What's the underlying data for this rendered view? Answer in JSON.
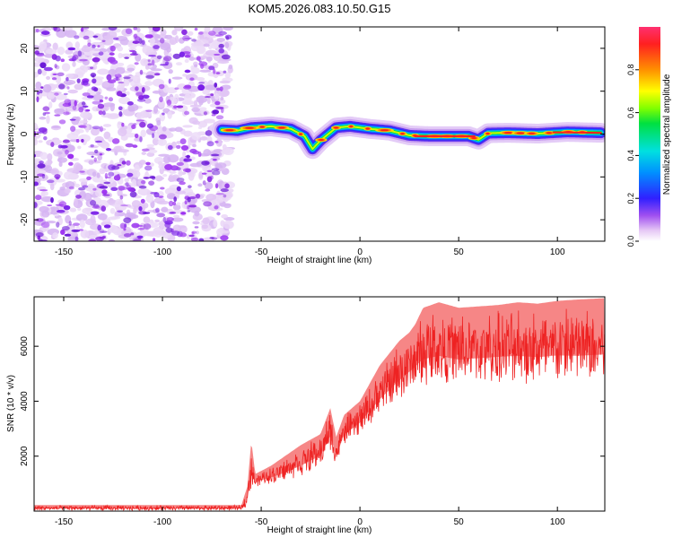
{
  "title": "KOM5.2026.083.10.50.G15",
  "colors": {
    "snr_line": "#ee2222",
    "frame": "#000000",
    "background": "#ffffff"
  },
  "chart_data": [
    {
      "type": "heatmap",
      "name": "spectrogram",
      "xlabel": "Height of straight line (km)",
      "ylabel": "Frequency (Hz)",
      "xlim": [
        -165,
        124
      ],
      "ylim": [
        -25,
        25
      ],
      "xticks": [
        -150,
        -100,
        -50,
        0,
        50,
        100
      ],
      "yticks": [
        -20,
        -10,
        0,
        10,
        20
      ],
      "noise_region_x": [
        -165,
        -68
      ],
      "signal_trace": {
        "x": [
          -70,
          -62,
          -55,
          -45,
          -35,
          -28,
          -24,
          -20,
          -12,
          -5,
          5,
          15,
          25,
          35,
          45,
          55,
          60,
          65,
          75,
          90,
          105,
          122
        ],
        "freq": [
          1,
          0.8,
          1.5,
          1.8,
          1.2,
          -0.5,
          -3.5,
          -1.5,
          1.5,
          1.8,
          1.2,
          0.8,
          -0.3,
          -0.5,
          -0.5,
          -0.5,
          -1.3,
          0.2,
          0.3,
          0.1,
          0.5,
          0.3
        ]
      },
      "colorbar": {
        "label": "Normalized spectral amplitude",
        "ticks": [
          "0.0",
          "0.2",
          "0.4",
          "0.6",
          "0.8"
        ],
        "range": [
          0,
          1
        ]
      }
    },
    {
      "type": "line",
      "name": "snr",
      "xlabel": "Height of straight line (km)",
      "ylabel": "SNR (10 * v/v)",
      "xlim": [
        -165,
        124
      ],
      "ylim": [
        0,
        7800
      ],
      "xticks": [
        -150,
        -100,
        -50,
        0,
        50,
        100
      ],
      "yticks": [
        2000,
        4000,
        6000
      ],
      "series": [
        {
          "name": "upper envelope",
          "x": [
            -165,
            -100,
            -60,
            -57,
            -55,
            -53,
            -45,
            -30,
            -20,
            -15,
            -12,
            -8,
            0,
            10,
            20,
            25,
            28,
            32,
            40,
            50,
            60,
            70,
            80,
            90,
            100,
            110,
            124
          ],
          "y": [
            220,
            220,
            220,
            900,
            2550,
            1350,
            1650,
            2400,
            2800,
            3750,
            2700,
            3500,
            4000,
            5300,
            6200,
            6500,
            6800,
            7400,
            7600,
            7400,
            7450,
            7500,
            7600,
            7550,
            7650,
            7700,
            7750
          ]
        },
        {
          "name": "lower envelope",
          "x": [
            -165,
            -100,
            -60,
            -57,
            -55,
            -50,
            -40,
            -30,
            -20,
            -15,
            -12,
            -8,
            0,
            10,
            20,
            25,
            30,
            40,
            50,
            60,
            70,
            80,
            90,
            100,
            110,
            124
          ],
          "y": [
            20,
            20,
            20,
            200,
            800,
            950,
            1050,
            1250,
            1600,
            2200,
            1600,
            2400,
            2800,
            3400,
            4000,
            4300,
            4500,
            4600,
            4500,
            4550,
            4600,
            4600,
            4550,
            4600,
            4550,
            4600
          ]
        }
      ]
    }
  ]
}
